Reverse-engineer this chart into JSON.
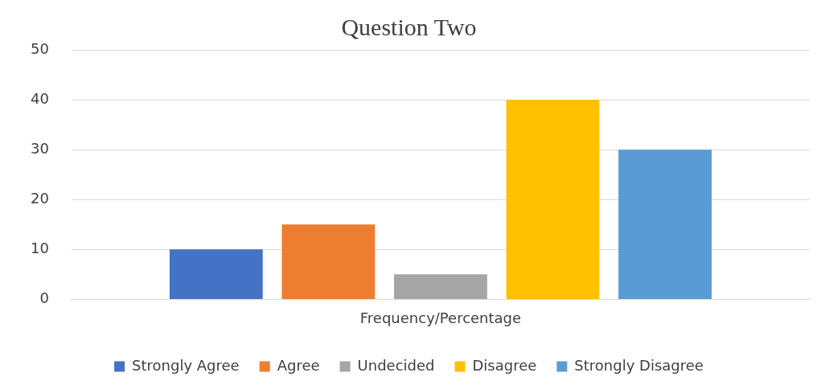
{
  "chart_data": {
    "type": "bar",
    "title": "Question Two",
    "categories": [
      "Frequency/Percentage"
    ],
    "series": [
      {
        "name": "Strongly Agree",
        "color": "#4472c4",
        "values": [
          10
        ]
      },
      {
        "name": "Agree",
        "color": "#ed7d31",
        "values": [
          15
        ]
      },
      {
        "name": "Undecided",
        "color": "#a5a5a5",
        "values": [
          5
        ]
      },
      {
        "name": "Disagree",
        "color": "#ffc000",
        "values": [
          40
        ]
      },
      {
        "name": "Strongly Disagree",
        "color": "#5b9bd5",
        "values": [
          30
        ]
      }
    ],
    "ylim": [
      0,
      50
    ],
    "yticks": [
      0,
      10,
      20,
      30,
      40,
      50
    ],
    "grid": "y",
    "legend": "bottom"
  }
}
